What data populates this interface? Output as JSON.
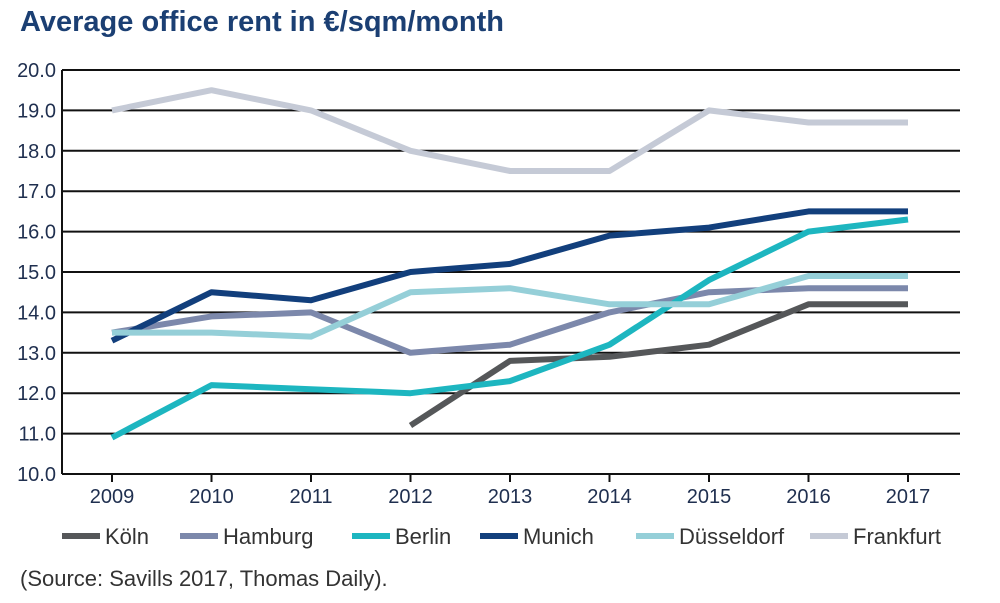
{
  "chart_data": {
    "type": "line",
    "title": "Average office rent in €/sqm/month",
    "xlabel": "",
    "ylabel": "",
    "x": [
      "2009",
      "2010",
      "2011",
      "2012",
      "2013",
      "2014",
      "2015",
      "2016",
      "2017"
    ],
    "ylim": [
      10.0,
      20.0
    ],
    "yticks": [
      "10.0",
      "11.0",
      "12.0",
      "13.0",
      "14.0",
      "15.0",
      "16.0",
      "17.0",
      "18.0",
      "19.0",
      "20.0"
    ],
    "grid": true,
    "legend_position": "bottom",
    "series": [
      {
        "name": "Köln",
        "color": "#555759",
        "values": [
          null,
          null,
          null,
          11.2,
          12.8,
          12.9,
          13.2,
          14.2,
          14.2
        ]
      },
      {
        "name": "Hamburg",
        "color": "#7c88ab",
        "values": [
          13.5,
          13.9,
          14.0,
          13.0,
          13.2,
          14.0,
          14.5,
          14.6,
          14.6
        ]
      },
      {
        "name": "Berlin",
        "color": "#1db6c0",
        "values": [
          10.9,
          12.2,
          12.1,
          12.0,
          12.3,
          13.2,
          14.8,
          16.0,
          16.3
        ]
      },
      {
        "name": "Munich",
        "color": "#123f7c",
        "values": [
          13.3,
          14.5,
          14.3,
          15.0,
          15.2,
          15.9,
          16.1,
          16.5,
          16.5
        ]
      },
      {
        "name": "Düsseldorf",
        "color": "#95cfd8",
        "values": [
          13.5,
          13.5,
          13.4,
          14.5,
          14.6,
          14.2,
          14.2,
          14.9,
          14.9
        ]
      },
      {
        "name": "Frankfurt",
        "color": "#c5cad6",
        "values": [
          19.0,
          19.5,
          19.0,
          18.0,
          17.5,
          17.5,
          19.0,
          18.7,
          18.7
        ]
      }
    ]
  },
  "source": "(Source: Savills 2017, Thomas Daily)."
}
